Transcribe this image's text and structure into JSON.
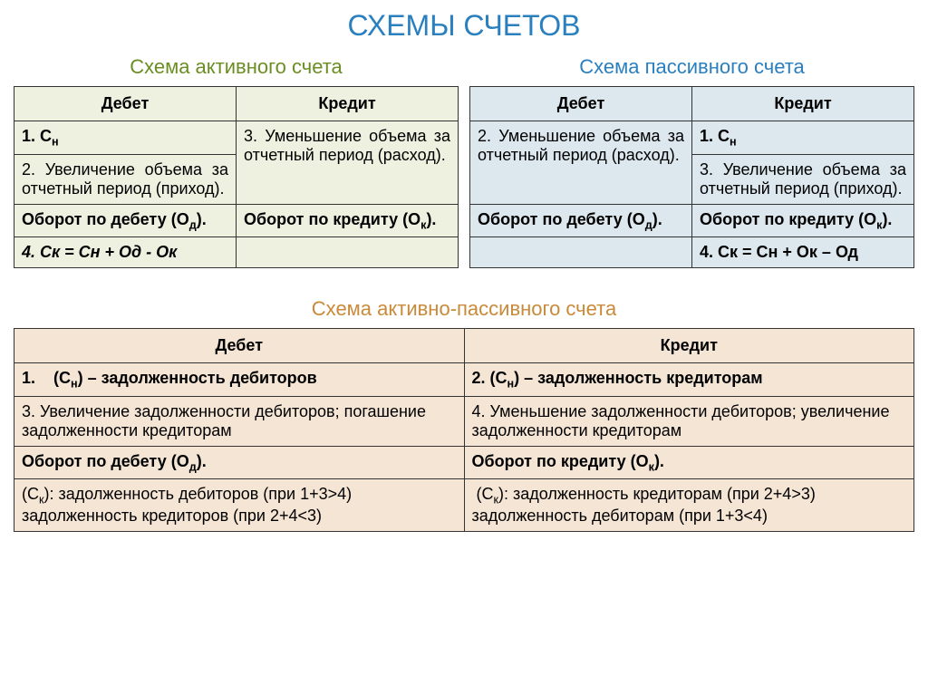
{
  "main_title": "СХЕМЫ СЧЕТОВ",
  "main_title_color": "#2a7fbf",
  "active": {
    "title": "Схема активного счета",
    "title_color": "#6b8e23",
    "bg_color": "#eef1e0",
    "debit_header": "Дебет",
    "credit_header": "Кредит",
    "r1_debit": "1. С",
    "r1_debit_sub": "н",
    "r2_debit": "2. Увеличение объема за отчетный период (приход).",
    "r12_credit": "3. Уменьшение объема за отчетный период (расход).",
    "r3_debit_a": "Оборот по дебету (О",
    "r3_debit_sub": "д",
    "r3_debit_b": ").",
    "r3_credit_a": "Оборот по кредиту (О",
    "r3_credit_sub": "к",
    "r3_credit_b": ").",
    "r4_formula": "4. Ск = Сн + Од - Ок"
  },
  "passive": {
    "title": "Схема пассивного счета",
    "title_color": "#2a7fbf",
    "bg_color": "#dce7ee",
    "debit_header": "Дебет",
    "credit_header": "Кредит",
    "r1_credit": "1. С",
    "r1_credit_sub": "н",
    "r2_debit": "2. Уменьшение объема за отчетный период (расход).",
    "r2_credit": "3. Увеличение объема за отчетный период (приход).",
    "r3_debit_a": "Оборот по дебету (О",
    "r3_debit_sub": "д",
    "r3_debit_b": ").",
    "r3_credit_a": "Оборот по кредиту (О",
    "r3_credit_sub": "к",
    "r3_credit_b": ").",
    "r4_formula": "4. Ск = Сн + Ок – Од"
  },
  "ap": {
    "title": "Схема активно-пассивного счета",
    "title_color": "#c98a3a",
    "bg_color": "#f5e5d5",
    "debit_header": "Дебет",
    "credit_header": "Кредит",
    "r1_debit_a": "1.    (С",
    "r1_debit_sub": "н",
    "r1_debit_b": ") – задолженность дебиторов",
    "r1_credit_a": "2. (С",
    "r1_credit_sub": "н",
    "r1_credit_b": ") – задолженность кредиторам",
    "r2_debit": "3. Увеличение задолженности дебиторов; погашение задолженности кредиторам",
    "r2_credit": "4. Уменьшение задолженности дебиторов; увеличение задолженности кредиторам",
    "r3_debit_a": "Оборот по дебету (О",
    "r3_debit_sub": "д",
    "r3_debit_b": ").",
    "r3_credit_a": "Оборот по кредиту (О",
    "r3_credit_sub": "к",
    "r3_credit_b": ").",
    "r4_debit_a": "(С",
    "r4_debit_sub": "к",
    "r4_debit_b": "): задолженность дебиторов (при 1+3>4) задолженность кредиторов (при 2+4<3)",
    "r4_credit_a": " (С",
    "r4_credit_sub": "к",
    "r4_credit_b": "): задолженность кредиторам (при 2+4>3) задолженность дебиторам (при 1+3<4)"
  }
}
